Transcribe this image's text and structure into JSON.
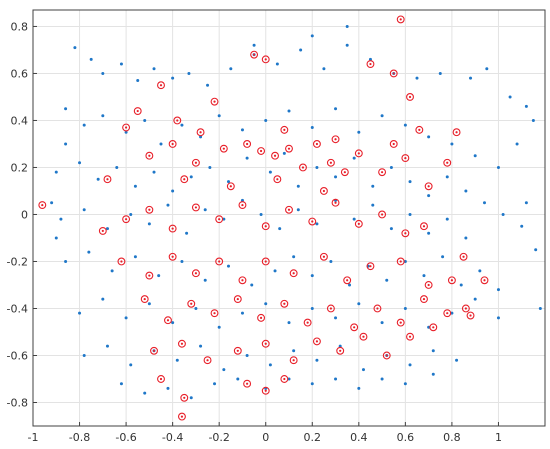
{
  "chart_data": {
    "type": "scatter",
    "title": "",
    "xlabel": "",
    "ylabel": "",
    "xlim": [
      -1.0,
      1.2
    ],
    "ylim": [
      -0.9,
      0.87
    ],
    "grid": true,
    "x_ticks": [
      -1,
      -0.8,
      -0.6,
      -0.4,
      -0.2,
      0,
      0.2,
      0.4,
      0.6,
      0.8,
      1
    ],
    "x_tick_labels": [
      "-1",
      "-0.8",
      "-0.6",
      "-0.4",
      "-0.2",
      "0",
      "0.2",
      "0.4",
      "0.6",
      "0.8",
      "1"
    ],
    "y_ticks": [
      -0.8,
      -0.6,
      -0.4,
      -0.2,
      0,
      0.2,
      0.4,
      0.6,
      0.8
    ],
    "y_tick_labels": [
      "-0.8",
      "-0.6",
      "-0.4",
      "-0.2",
      "0",
      "0.2",
      "0.4",
      "0.6",
      "0.8"
    ],
    "series": [
      {
        "marker": "dot",
        "color": "#1f77c8",
        "points": [
          [
            -0.82,
            0.71
          ],
          [
            -0.75,
            0.66
          ],
          [
            -0.7,
            0.6
          ],
          [
            -0.62,
            0.64
          ],
          [
            -0.55,
            0.57
          ],
          [
            -0.48,
            0.62
          ],
          [
            -0.4,
            0.58
          ],
          [
            -0.33,
            0.6
          ],
          [
            -0.25,
            0.55
          ],
          [
            -0.15,
            0.62
          ],
          [
            -0.05,
            0.68
          ],
          [
            0.05,
            0.64
          ],
          [
            0.15,
            0.7
          ],
          [
            0.25,
            0.62
          ],
          [
            0.35,
            0.72
          ],
          [
            0.45,
            0.66
          ],
          [
            0.55,
            0.6
          ],
          [
            0.65,
            0.58
          ],
          [
            0.75,
            0.6
          ],
          [
            0.88,
            0.58
          ],
          [
            0.95,
            0.62
          ],
          [
            1.05,
            0.5
          ],
          [
            1.12,
            0.46
          ],
          [
            1.15,
            0.4
          ],
          [
            -0.86,
            0.45
          ],
          [
            -0.78,
            0.38
          ],
          [
            -0.7,
            0.42
          ],
          [
            -0.6,
            0.35
          ],
          [
            -0.52,
            0.4
          ],
          [
            -0.45,
            0.3
          ],
          [
            -0.36,
            0.38
          ],
          [
            -0.28,
            0.33
          ],
          [
            -0.2,
            0.42
          ],
          [
            -0.1,
            0.36
          ],
          [
            0.0,
            0.4
          ],
          [
            0.1,
            0.44
          ],
          [
            0.2,
            0.37
          ],
          [
            0.3,
            0.45
          ],
          [
            0.4,
            0.35
          ],
          [
            0.5,
            0.42
          ],
          [
            0.6,
            0.38
          ],
          [
            0.7,
            0.33
          ],
          [
            0.8,
            0.3
          ],
          [
            0.9,
            0.25
          ],
          [
            1.0,
            0.2
          ],
          [
            1.08,
            0.3
          ],
          [
            -0.9,
            0.18
          ],
          [
            -0.8,
            0.22
          ],
          [
            -0.72,
            0.15
          ],
          [
            -0.64,
            0.2
          ],
          [
            -0.56,
            0.12
          ],
          [
            -0.48,
            0.18
          ],
          [
            -0.4,
            0.1
          ],
          [
            -0.32,
            0.16
          ],
          [
            -0.24,
            0.2
          ],
          [
            -0.16,
            0.14
          ],
          [
            -0.08,
            0.24
          ],
          [
            0.02,
            0.18
          ],
          [
            0.08,
            0.26
          ],
          [
            0.14,
            0.12
          ],
          [
            0.22,
            0.2
          ],
          [
            0.3,
            0.16
          ],
          [
            0.38,
            0.24
          ],
          [
            0.46,
            0.12
          ],
          [
            0.54,
            0.2
          ],
          [
            0.62,
            0.14
          ],
          [
            0.7,
            0.08
          ],
          [
            0.78,
            0.16
          ],
          [
            0.86,
            0.1
          ],
          [
            0.94,
            0.05
          ],
          [
            1.02,
            0.0
          ],
          [
            1.1,
            -0.05
          ],
          [
            -0.88,
            -0.02
          ],
          [
            -0.78,
            0.02
          ],
          [
            -0.68,
            -0.06
          ],
          [
            -0.58,
            0.0
          ],
          [
            -0.5,
            -0.04
          ],
          [
            -0.42,
            0.04
          ],
          [
            -0.34,
            -0.08
          ],
          [
            -0.26,
            0.02
          ],
          [
            -0.18,
            -0.02
          ],
          [
            -0.1,
            0.06
          ],
          [
            -0.02,
            0.0
          ],
          [
            0.06,
            -0.06
          ],
          [
            0.14,
            0.02
          ],
          [
            0.22,
            -0.04
          ],
          [
            0.3,
            0.06
          ],
          [
            0.38,
            -0.02
          ],
          [
            0.46,
            0.04
          ],
          [
            0.54,
            -0.06
          ],
          [
            0.62,
            0.0
          ],
          [
            0.7,
            -0.08
          ],
          [
            0.78,
            -0.02
          ],
          [
            0.86,
            -0.1
          ],
          [
            -0.86,
            -0.2
          ],
          [
            -0.76,
            -0.16
          ],
          [
            -0.66,
            -0.24
          ],
          [
            -0.56,
            -0.18
          ],
          [
            -0.46,
            -0.26
          ],
          [
            -0.36,
            -0.2
          ],
          [
            -0.26,
            -0.28
          ],
          [
            -0.16,
            -0.22
          ],
          [
            -0.06,
            -0.3
          ],
          [
            0.04,
            -0.24
          ],
          [
            0.12,
            -0.18
          ],
          [
            0.2,
            -0.26
          ],
          [
            0.28,
            -0.2
          ],
          [
            0.36,
            -0.3
          ],
          [
            0.44,
            -0.22
          ],
          [
            0.52,
            -0.28
          ],
          [
            0.6,
            -0.2
          ],
          [
            0.68,
            -0.26
          ],
          [
            0.76,
            -0.18
          ],
          [
            0.84,
            -0.3
          ],
          [
            0.92,
            -0.24
          ],
          [
            1.0,
            -0.32
          ],
          [
            -0.8,
            -0.42
          ],
          [
            -0.7,
            -0.36
          ],
          [
            -0.6,
            -0.44
          ],
          [
            -0.5,
            -0.38
          ],
          [
            -0.4,
            -0.46
          ],
          [
            -0.3,
            -0.4
          ],
          [
            -0.2,
            -0.48
          ],
          [
            -0.1,
            -0.42
          ],
          [
            0.0,
            -0.38
          ],
          [
            0.1,
            -0.46
          ],
          [
            0.2,
            -0.4
          ],
          [
            0.3,
            -0.44
          ],
          [
            0.4,
            -0.38
          ],
          [
            0.5,
            -0.46
          ],
          [
            0.6,
            -0.4
          ],
          [
            0.7,
            -0.48
          ],
          [
            0.8,
            -0.42
          ],
          [
            0.9,
            -0.36
          ],
          [
            1.0,
            -0.44
          ],
          [
            -0.78,
            -0.6
          ],
          [
            -0.68,
            -0.56
          ],
          [
            -0.58,
            -0.64
          ],
          [
            -0.48,
            -0.58
          ],
          [
            -0.38,
            -0.62
          ],
          [
            -0.28,
            -0.56
          ],
          [
            -0.18,
            -0.66
          ],
          [
            -0.08,
            -0.6
          ],
          [
            0.02,
            -0.64
          ],
          [
            0.12,
            -0.58
          ],
          [
            0.22,
            -0.62
          ],
          [
            0.32,
            -0.56
          ],
          [
            0.42,
            -0.66
          ],
          [
            0.52,
            -0.6
          ],
          [
            0.62,
            -0.64
          ],
          [
            0.72,
            -0.58
          ],
          [
            0.82,
            -0.62
          ],
          [
            -0.62,
            -0.72
          ],
          [
            -0.52,
            -0.76
          ],
          [
            -0.42,
            -0.74
          ],
          [
            -0.32,
            -0.78
          ],
          [
            -0.22,
            -0.72
          ],
          [
            -0.12,
            -0.7
          ],
          [
            0.0,
            -0.74
          ],
          [
            0.1,
            -0.7
          ],
          [
            0.2,
            -0.72
          ],
          [
            0.3,
            -0.7
          ],
          [
            0.4,
            -0.74
          ],
          [
            0.5,
            -0.7
          ],
          [
            0.6,
            -0.72
          ],
          [
            0.72,
            -0.68
          ],
          [
            1.18,
            -0.4
          ],
          [
            1.12,
            0.05
          ],
          [
            1.16,
            -0.15
          ],
          [
            -0.92,
            0.05
          ],
          [
            -0.9,
            -0.1
          ],
          [
            -0.86,
            0.3
          ],
          [
            0.35,
            0.8
          ],
          [
            0.2,
            0.76
          ],
          [
            -0.05,
            0.72
          ]
        ]
      },
      {
        "marker": "circle-dot",
        "color": "#e8202a",
        "points": [
          [
            -0.96,
            0.04
          ],
          [
            -0.6,
            0.37
          ],
          [
            -0.55,
            0.44
          ],
          [
            -0.45,
            0.55
          ],
          [
            -0.38,
            0.4
          ],
          [
            -0.22,
            0.48
          ],
          [
            -0.05,
            0.68
          ],
          [
            0.0,
            0.66
          ],
          [
            0.58,
            0.83
          ],
          [
            0.45,
            0.64
          ],
          [
            0.55,
            0.6
          ],
          [
            0.62,
            0.5
          ],
          [
            0.66,
            0.36
          ],
          [
            0.82,
            0.35
          ],
          [
            -0.68,
            0.15
          ],
          [
            -0.5,
            0.25
          ],
          [
            -0.4,
            0.3
          ],
          [
            -0.3,
            0.22
          ],
          [
            -0.18,
            0.28
          ],
          [
            -0.08,
            0.3
          ],
          [
            -0.02,
            0.27
          ],
          [
            0.04,
            0.25
          ],
          [
            0.1,
            0.28
          ],
          [
            0.16,
            0.2
          ],
          [
            0.22,
            0.3
          ],
          [
            0.28,
            0.22
          ],
          [
            0.34,
            0.18
          ],
          [
            0.4,
            0.26
          ],
          [
            0.5,
            0.18
          ],
          [
            0.6,
            0.24
          ],
          [
            0.7,
            0.12
          ],
          [
            0.78,
            0.22
          ],
          [
            -0.7,
            -0.07
          ],
          [
            -0.6,
            -0.02
          ],
          [
            -0.5,
            0.02
          ],
          [
            -0.4,
            -0.06
          ],
          [
            -0.3,
            0.03
          ],
          [
            -0.2,
            -0.02
          ],
          [
            -0.1,
            0.04
          ],
          [
            0.0,
            -0.05
          ],
          [
            0.1,
            0.02
          ],
          [
            0.2,
            -0.03
          ],
          [
            0.3,
            0.05
          ],
          [
            0.4,
            -0.04
          ],
          [
            0.5,
            0.0
          ],
          [
            0.6,
            -0.08
          ],
          [
            0.68,
            -0.05
          ],
          [
            0.85,
            -0.18
          ],
          [
            -0.62,
            -0.2
          ],
          [
            -0.5,
            -0.26
          ],
          [
            -0.4,
            -0.18
          ],
          [
            -0.3,
            -0.25
          ],
          [
            -0.2,
            -0.2
          ],
          [
            -0.1,
            -0.28
          ],
          [
            0.0,
            -0.2
          ],
          [
            0.12,
            -0.25
          ],
          [
            0.25,
            -0.18
          ],
          [
            0.35,
            -0.28
          ],
          [
            0.45,
            -0.22
          ],
          [
            0.58,
            -0.2
          ],
          [
            0.7,
            -0.3
          ],
          [
            0.8,
            -0.28
          ],
          [
            0.94,
            -0.28
          ],
          [
            -0.52,
            -0.36
          ],
          [
            -0.42,
            -0.45
          ],
          [
            -0.32,
            -0.38
          ],
          [
            -0.22,
            -0.42
          ],
          [
            -0.12,
            -0.36
          ],
          [
            -0.02,
            -0.44
          ],
          [
            0.08,
            -0.38
          ],
          [
            0.18,
            -0.46
          ],
          [
            0.28,
            -0.4
          ],
          [
            0.38,
            -0.48
          ],
          [
            0.48,
            -0.4
          ],
          [
            0.58,
            -0.46
          ],
          [
            0.68,
            -0.36
          ],
          [
            0.78,
            -0.42
          ],
          [
            0.86,
            -0.4
          ],
          [
            0.88,
            -0.43
          ],
          [
            -0.48,
            -0.58
          ],
          [
            -0.36,
            -0.55
          ],
          [
            -0.25,
            -0.62
          ],
          [
            -0.12,
            -0.58
          ],
          [
            0.0,
            -0.55
          ],
          [
            0.12,
            -0.62
          ],
          [
            0.22,
            -0.54
          ],
          [
            0.32,
            -0.58
          ],
          [
            0.42,
            -0.52
          ],
          [
            0.52,
            -0.6
          ],
          [
            0.62,
            -0.52
          ],
          [
            0.72,
            -0.48
          ],
          [
            -0.45,
            -0.7
          ],
          [
            -0.35,
            -0.78
          ],
          [
            -0.36,
            -0.86
          ],
          [
            -0.08,
            -0.72
          ],
          [
            0.0,
            -0.75
          ],
          [
            0.08,
            -0.7
          ],
          [
            -0.28,
            0.35
          ],
          [
            0.08,
            0.36
          ],
          [
            0.3,
            0.32
          ],
          [
            -0.15,
            0.12
          ],
          [
            0.05,
            0.15
          ],
          [
            0.25,
            0.1
          ],
          [
            -0.35,
            0.15
          ],
          [
            0.55,
            0.3
          ]
        ]
      }
    ]
  }
}
